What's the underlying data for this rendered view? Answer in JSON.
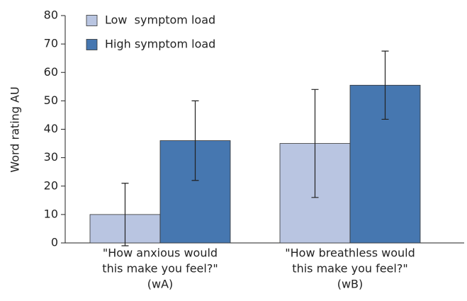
{
  "chart_data": {
    "type": "bar",
    "y_label": "Word rating AU",
    "categories": [
      [
        "\"How anxious would",
        "this make you feel?\"",
        "(wA)"
      ],
      [
        "\"How breathless would",
        "this make you feel?\"",
        "(wB)"
      ]
    ],
    "series": [
      {
        "name": "Low  symptom load",
        "color": "#b9c5e1",
        "values": [
          10,
          35
        ],
        "errors": [
          11,
          19
        ]
      },
      {
        "name": "High symptom load",
        "color": "#4677b0",
        "values": [
          36,
          55.5
        ],
        "errors": [
          14,
          12
        ]
      }
    ],
    "ylim": [
      0,
      80
    ],
    "yticks": [
      0,
      10,
      20,
      30,
      40,
      50,
      60,
      70,
      80
    ],
    "legend": "upper left"
  }
}
